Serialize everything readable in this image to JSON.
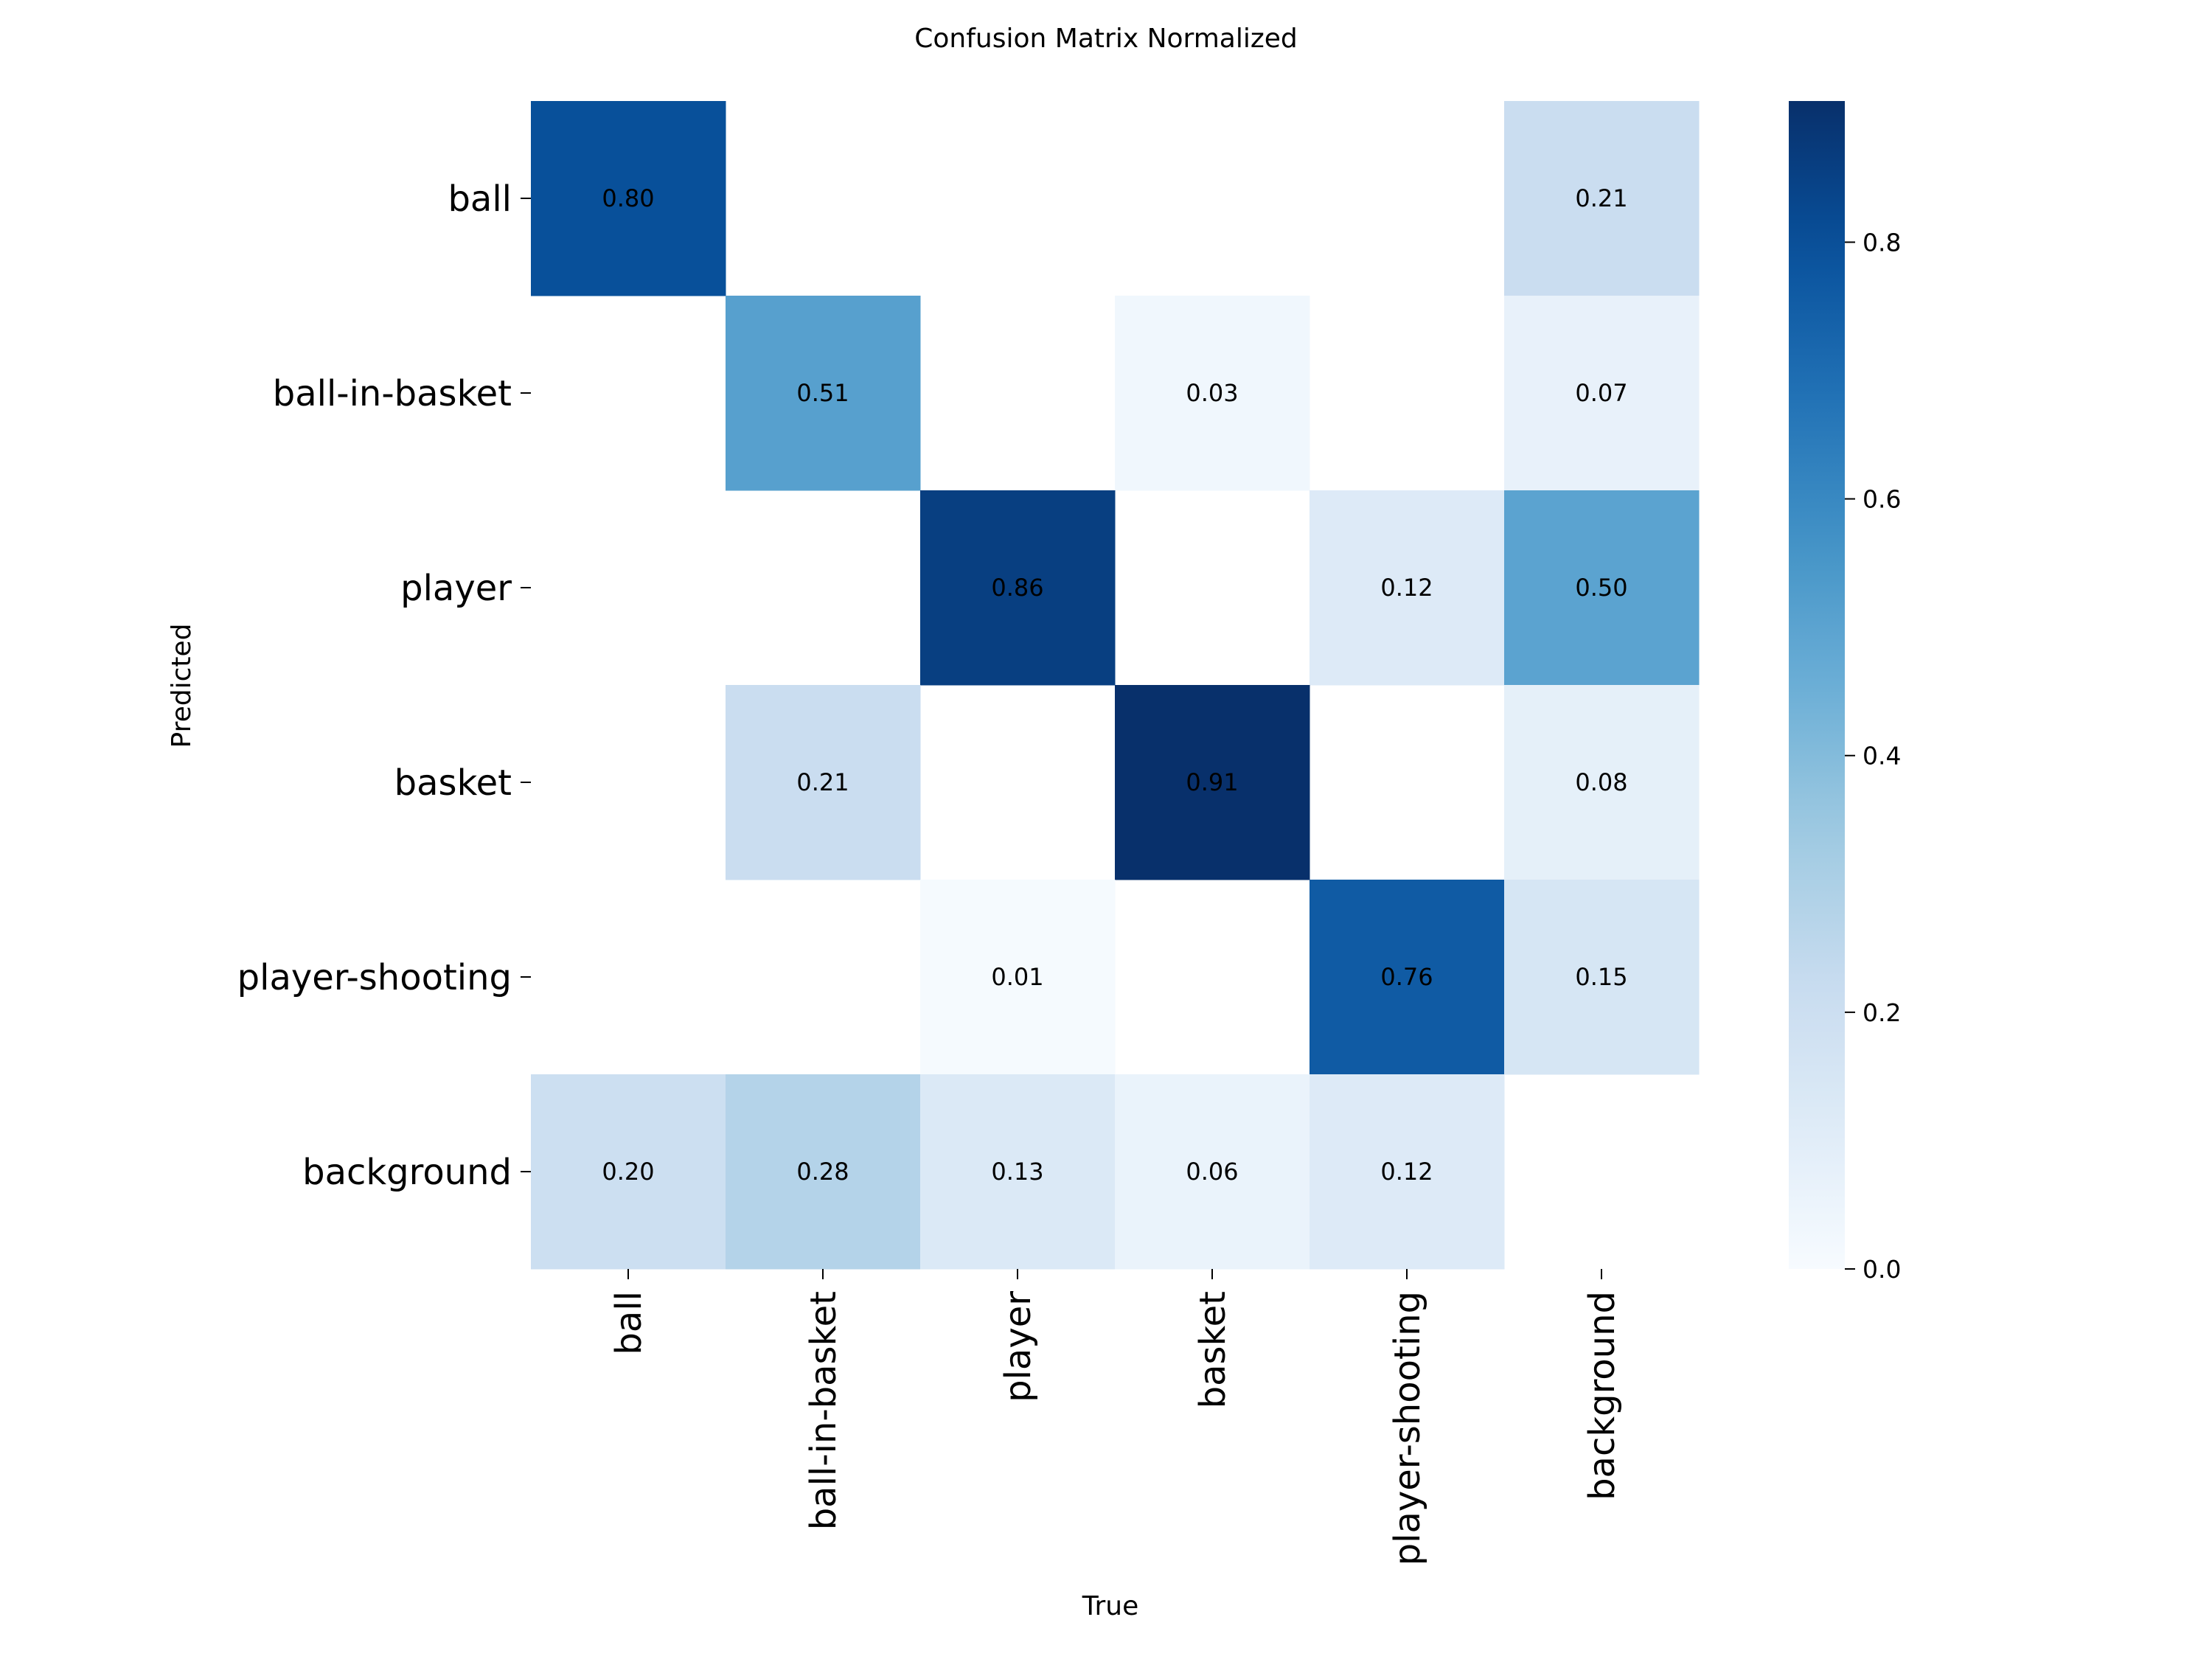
{
  "chart_data": {
    "type": "heatmap",
    "title": "Confusion Matrix Normalized",
    "xlabel": "True",
    "ylabel": "Predicted",
    "x_categories": [
      "ball",
      "ball-in-basket",
      "player",
      "basket",
      "player-shooting",
      "background"
    ],
    "y_categories": [
      "ball",
      "ball-in-basket",
      "player",
      "basket",
      "player-shooting",
      "background"
    ],
    "values": [
      [
        0.8,
        null,
        null,
        null,
        null,
        0.21
      ],
      [
        null,
        0.51,
        null,
        0.03,
        null,
        0.07
      ],
      [
        null,
        null,
        0.86,
        null,
        0.12,
        0.5
      ],
      [
        null,
        0.21,
        null,
        0.91,
        null,
        0.08
      ],
      [
        null,
        null,
        0.01,
        null,
        0.76,
        0.15
      ],
      [
        0.2,
        0.28,
        0.13,
        0.06,
        0.12,
        null
      ]
    ],
    "colormap": "Blues",
    "vmin": 0.0,
    "vmax": 0.91,
    "colorbar": {
      "ticks": [
        0.0,
        0.2,
        0.4,
        0.6,
        0.8
      ],
      "tick_labels": [
        "0.0",
        "0.2",
        "0.4",
        "0.6",
        "0.8"
      ]
    },
    "value_format": "2 decimals",
    "grid": false,
    "legend": "colorbar-right"
  }
}
